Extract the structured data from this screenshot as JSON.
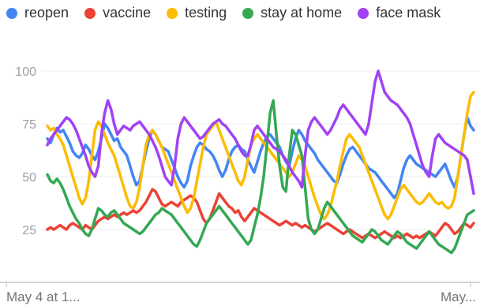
{
  "chart_data": {
    "type": "line",
    "title": "",
    "xlabel": "",
    "ylabel": "",
    "ylim": [
      0,
      100
    ],
    "y_ticks": [
      25,
      50,
      75,
      100
    ],
    "x_tick_labels": [
      "May 4 at 1...",
      "May..."
    ],
    "grid": "horizontal",
    "legend_position": "top",
    "series": [
      {
        "name": "reopen",
        "color": "#4285f4",
        "values": [
          68,
          66,
          70,
          73,
          71,
          72,
          69,
          66,
          62,
          60,
          59,
          61,
          65,
          63,
          60,
          58,
          62,
          68,
          75,
          73,
          70,
          67,
          68,
          64,
          62,
          60,
          55,
          50,
          46,
          48,
          55,
          62,
          68,
          72,
          70,
          67,
          64,
          63,
          62,
          58,
          54,
          50,
          47,
          45,
          48,
          55,
          60,
          64,
          66,
          65,
          63,
          62,
          60,
          57,
          53,
          50,
          53,
          58,
          62,
          64,
          65,
          63,
          62,
          58,
          55,
          52,
          57,
          62,
          66,
          69,
          70,
          68,
          66,
          64,
          60,
          57,
          55,
          62,
          68,
          72,
          70,
          67,
          65,
          63,
          61,
          58,
          56,
          54,
          52,
          50,
          48,
          47,
          51,
          56,
          60,
          63,
          64,
          62,
          60,
          58,
          56,
          54,
          53,
          52,
          50,
          48,
          46,
          44,
          42,
          40,
          42,
          48,
          54,
          58,
          60,
          58,
          56,
          55,
          54,
          53,
          52,
          51,
          50,
          52,
          54,
          56,
          52,
          48,
          45,
          50,
          60,
          70,
          78,
          74,
          72
        ]
      },
      {
        "name": "vaccine",
        "color": "#ea4335",
        "values": [
          25,
          26,
          25,
          26,
          27,
          26,
          25,
          27,
          28,
          27,
          26,
          25,
          27,
          26,
          25,
          27,
          29,
          30,
          31,
          30,
          31,
          32,
          31,
          32,
          33,
          32,
          33,
          34,
          33,
          34,
          36,
          38,
          41,
          44,
          43,
          40,
          37,
          36,
          37,
          38,
          37,
          36,
          38,
          39,
          40,
          41,
          40,
          38,
          34,
          30,
          28,
          30,
          34,
          38,
          42,
          40,
          38,
          36,
          35,
          33,
          34,
          31,
          29,
          31,
          33,
          35,
          34,
          33,
          32,
          31,
          30,
          29,
          28,
          27,
          28,
          29,
          28,
          27,
          28,
          27,
          26,
          27,
          26,
          25,
          24,
          25,
          26,
          27,
          28,
          27,
          26,
          25,
          24,
          23,
          24,
          25,
          24,
          23,
          22,
          21,
          22,
          23,
          22,
          21,
          22,
          23,
          24,
          23,
          22,
          21,
          22,
          21,
          22,
          23,
          22,
          21,
          22,
          21,
          22,
          23,
          24,
          23,
          22,
          24,
          26,
          28,
          27,
          25,
          23,
          24,
          26,
          28,
          27,
          26,
          28
        ]
      },
      {
        "name": "testing",
        "color": "#fbbc04",
        "values": [
          74,
          72,
          73,
          70,
          68,
          65,
          60,
          55,
          50,
          45,
          40,
          37,
          40,
          48,
          60,
          72,
          76,
          74,
          70,
          66,
          63,
          60,
          55,
          50,
          45,
          40,
          36,
          35,
          38,
          45,
          55,
          65,
          70,
          72,
          70,
          67,
          64,
          60,
          56,
          52,
          48,
          44,
          40,
          36,
          33,
          35,
          40,
          48,
          56,
          64,
          70,
          72,
          74,
          76,
          72,
          68,
          64,
          60,
          56,
          52,
          48,
          46,
          50,
          58,
          65,
          68,
          70,
          68,
          66,
          64,
          62,
          60,
          58,
          56,
          54,
          52,
          50,
          52,
          56,
          60,
          58,
          55,
          50,
          45,
          40,
          36,
          32,
          30,
          32,
          36,
          42,
          48,
          55,
          62,
          68,
          70,
          68,
          66,
          64,
          60,
          56,
          52,
          48,
          44,
          40,
          36,
          32,
          30,
          32,
          36,
          40,
          44,
          46,
          44,
          42,
          40,
          38,
          37,
          38,
          40,
          42,
          40,
          38,
          37,
          38,
          36,
          35,
          36,
          40,
          50,
          60,
          70,
          80,
          88,
          90
        ]
      },
      {
        "name": "stay at home",
        "color": "#34a853",
        "values": [
          51,
          48,
          47,
          49,
          47,
          44,
          40,
          36,
          33,
          30,
          28,
          25,
          23,
          22,
          25,
          30,
          35,
          34,
          32,
          31,
          33,
          34,
          32,
          30,
          28,
          27,
          26,
          25,
          24,
          23,
          24,
          26,
          28,
          30,
          32,
          33,
          35,
          34,
          33,
          32,
          30,
          28,
          26,
          24,
          22,
          20,
          18,
          17,
          20,
          24,
          28,
          30,
          32,
          34,
          36,
          34,
          32,
          30,
          28,
          26,
          24,
          22,
          20,
          18,
          20,
          26,
          32,
          40,
          50,
          65,
          80,
          86,
          70,
          55,
          45,
          43,
          60,
          72,
          70,
          65,
          60,
          45,
          30,
          25,
          23,
          25,
          30,
          35,
          38,
          36,
          34,
          32,
          30,
          28,
          26,
          24,
          22,
          21,
          20,
          19,
          21,
          23,
          25,
          24,
          22,
          20,
          19,
          18,
          20,
          22,
          24,
          23,
          21,
          19,
          18,
          17,
          16,
          18,
          20,
          22,
          24,
          22,
          20,
          18,
          17,
          16,
          15,
          14,
          16,
          20,
          24,
          28,
          32,
          33,
          34
        ]
      },
      {
        "name": "face mask",
        "color": "#a142f4",
        "values": [
          65,
          68,
          70,
          72,
          74,
          76,
          78,
          77,
          75,
          72,
          68,
          64,
          60,
          55,
          52,
          50,
          55,
          70,
          80,
          86,
          82,
          75,
          70,
          72,
          74,
          73,
          72,
          74,
          75,
          76,
          74,
          72,
          70,
          67,
          64,
          60,
          55,
          50,
          48,
          46,
          55,
          68,
          75,
          78,
          76,
          74,
          72,
          70,
          68,
          69,
          71,
          73,
          75,
          76,
          77,
          75,
          74,
          72,
          70,
          68,
          65,
          62,
          60,
          60,
          65,
          72,
          74,
          72,
          70,
          68,
          66,
          64,
          63,
          62,
          60,
          58,
          55,
          52,
          50,
          48,
          45,
          60,
          72,
          76,
          78,
          76,
          74,
          72,
          70,
          72,
          75,
          78,
          82,
          84,
          82,
          80,
          78,
          76,
          74,
          72,
          70,
          75,
          85,
          95,
          100,
          95,
          90,
          88,
          86,
          85,
          84,
          82,
          80,
          78,
          75,
          70,
          65,
          60,
          55,
          52,
          50,
          60,
          68,
          70,
          68,
          66,
          65,
          64,
          63,
          62,
          61,
          60,
          58,
          50,
          42
        ]
      }
    ]
  }
}
